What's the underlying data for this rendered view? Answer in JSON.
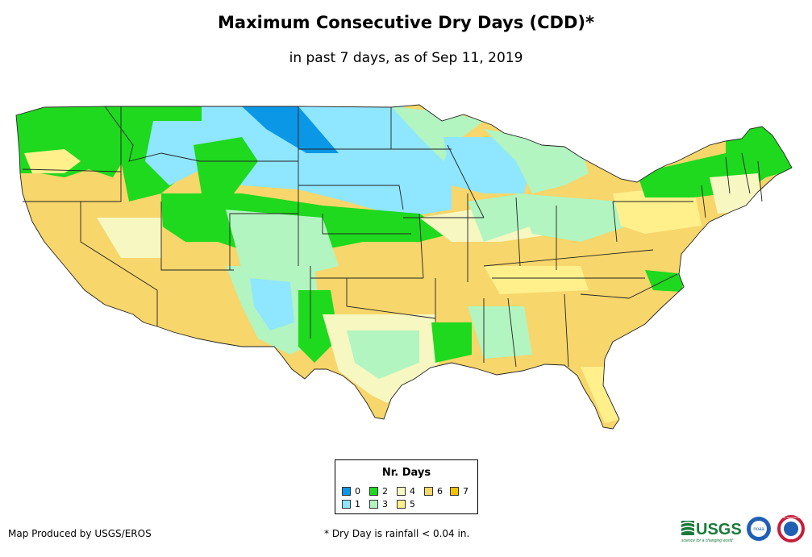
{
  "title": "Maximum Consecutive Dry Days (CDD)*",
  "subtitle": "in past 7 days, as of Sep 11, 2019",
  "legend": {
    "title": "Nr. Days",
    "items": [
      {
        "label": "0",
        "color": "#0a97e6"
      },
      {
        "label": "1",
        "color": "#8fe6ff"
      },
      {
        "label": "2",
        "color": "#1ed91e"
      },
      {
        "label": "3",
        "color": "#b2f5c0"
      },
      {
        "label": "4",
        "color": "#f7f7c2"
      },
      {
        "label": "5",
        "color": "#fff08c"
      },
      {
        "label": "6",
        "color": "#f7d66b"
      },
      {
        "label": "7",
        "color": "#f5c200"
      }
    ]
  },
  "footer": {
    "credit": "Map Produced by USGS/EROS",
    "note": "* Dry Day is rainfall < 0.04 in."
  },
  "logos": {
    "usgs_text": "USGS",
    "usgs_tagline": "science for a changing world",
    "noaa_text": "noaa",
    "nws_text": "NATIONAL WEATHER SERVICE"
  }
}
